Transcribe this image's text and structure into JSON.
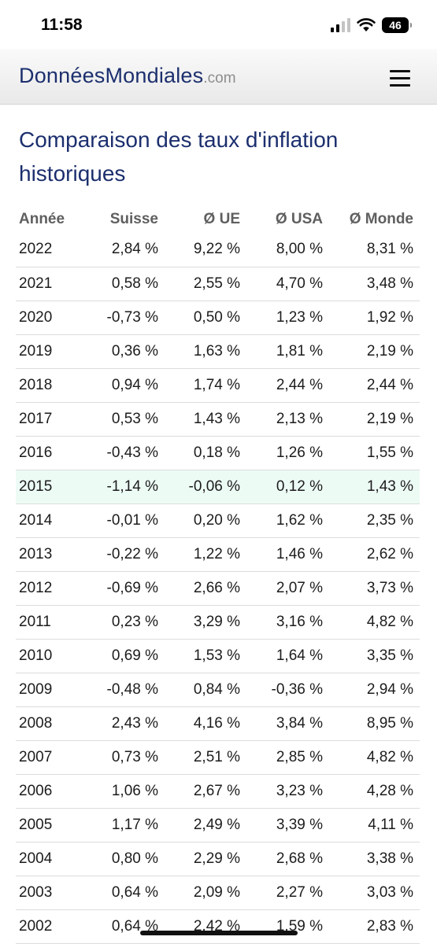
{
  "status_bar": {
    "time": "11:58",
    "battery": "46"
  },
  "header": {
    "brand": "DonnéesMondiales",
    "tld": ".com",
    "menu_icon": "hamburger-menu-icon"
  },
  "page": {
    "title": "Comparaison des taux d'inflation historiques"
  },
  "table": {
    "headers": [
      "Année",
      "Suisse",
      "Ø UE",
      "Ø USA",
      "Ø Monde"
    ],
    "highlight_year": "2015",
    "highlight_color": "#edfbf5",
    "rows": [
      [
        "2022",
        "2,84 %",
        "9,22 %",
        "8,00 %",
        "8,31 %"
      ],
      [
        "2021",
        "0,58 %",
        "2,55 %",
        "4,70 %",
        "3,48 %"
      ],
      [
        "2020",
        "-0,73 %",
        "0,50 %",
        "1,23 %",
        "1,92 %"
      ],
      [
        "2019",
        "0,36 %",
        "1,63 %",
        "1,81 %",
        "2,19 %"
      ],
      [
        "2018",
        "0,94 %",
        "1,74 %",
        "2,44 %",
        "2,44 %"
      ],
      [
        "2017",
        "0,53 %",
        "1,43 %",
        "2,13 %",
        "2,19 %"
      ],
      [
        "2016",
        "-0,43 %",
        "0,18 %",
        "1,26 %",
        "1,55 %"
      ],
      [
        "2015",
        "-1,14 %",
        "-0,06 %",
        "0,12 %",
        "1,43 %"
      ],
      [
        "2014",
        "-0,01 %",
        "0,20 %",
        "1,62 %",
        "2,35 %"
      ],
      [
        "2013",
        "-0,22 %",
        "1,22 %",
        "1,46 %",
        "2,62 %"
      ],
      [
        "2012",
        "-0,69 %",
        "2,66 %",
        "2,07 %",
        "3,73 %"
      ],
      [
        "2011",
        "0,23 %",
        "3,29 %",
        "3,16 %",
        "4,82 %"
      ],
      [
        "2010",
        "0,69 %",
        "1,53 %",
        "1,64 %",
        "3,35 %"
      ],
      [
        "2009",
        "-0,48 %",
        "0,84 %",
        "-0,36 %",
        "2,94 %"
      ],
      [
        "2008",
        "2,43 %",
        "4,16 %",
        "3,84 %",
        "8,95 %"
      ],
      [
        "2007",
        "0,73 %",
        "2,51 %",
        "2,85 %",
        "4,82 %"
      ],
      [
        "2006",
        "1,06 %",
        "2,67 %",
        "3,23 %",
        "4,28 %"
      ],
      [
        "2005",
        "1,17 %",
        "2,49 %",
        "3,39 %",
        "4,11 %"
      ],
      [
        "2004",
        "0,80 %",
        "2,29 %",
        "2,68 %",
        "3,38 %"
      ],
      [
        "2003",
        "0,64 %",
        "2,09 %",
        "2,27 %",
        "3,03 %"
      ],
      [
        "2002",
        "0,64 %",
        "2,42 %",
        "1,59 %",
        "2,83 %"
      ]
    ]
  }
}
